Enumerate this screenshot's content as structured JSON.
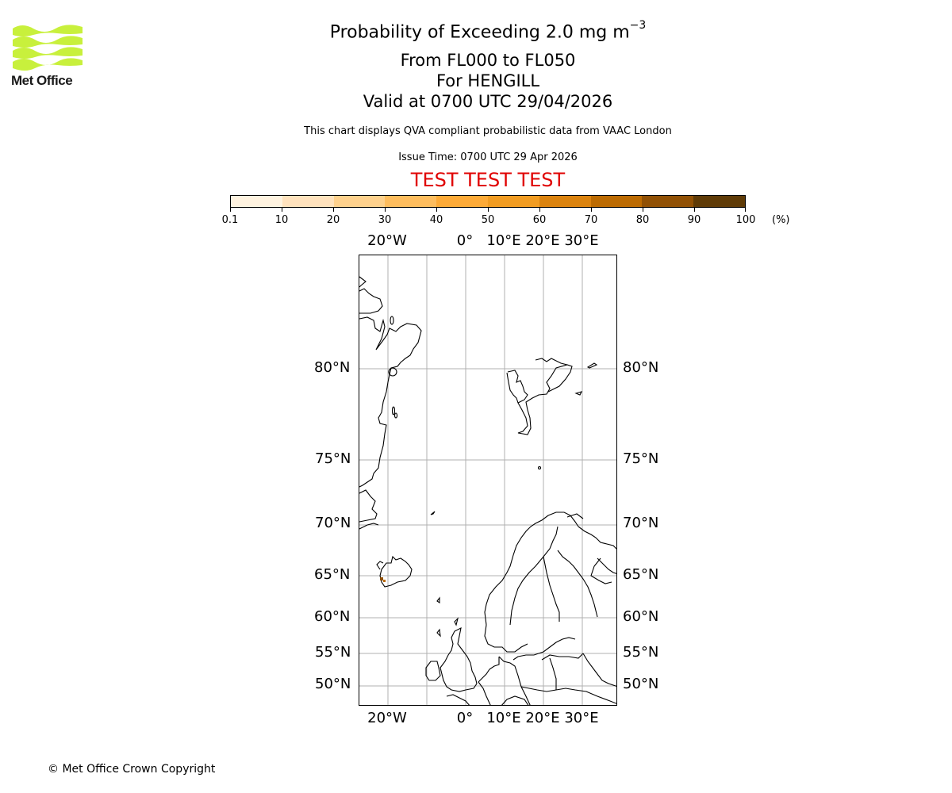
{
  "logo": {
    "name": "Met Office",
    "color": "#c8f03c"
  },
  "title": {
    "main": "Probability of Exceeding 2.0 mg m",
    "main_sup": "−3",
    "levels": "From FL000 to FL050",
    "volcano": "For HENGILL",
    "valid": "Valid at 0700 UTC 29/04/2026"
  },
  "info": {
    "description": "This chart displays QVA compliant probabilistic data from VAAC London",
    "issue_time": "Issue Time: 0700 UTC 29 Apr 2026",
    "test_banner": "TEST TEST TEST",
    "test_color": "#e00000"
  },
  "colorbar": {
    "unit": "(%)",
    "ticks": [
      "0.1",
      "10",
      "20",
      "30",
      "40",
      "50",
      "60",
      "70",
      "80",
      "90",
      "100"
    ],
    "colors": [
      "#fff3e0",
      "#ffe2bd",
      "#fed18d",
      "#febd5e",
      "#fdaa37",
      "#f19c22",
      "#db830f",
      "#bc6b02",
      "#915105",
      "#5f3b07"
    ]
  },
  "map": {
    "top_lon_labels": [
      "20°W",
      "0°",
      "10°E",
      "20°E",
      "30°E"
    ],
    "bottom_lon_labels": [
      "20°W",
      "0°",
      "10°E",
      "20°E",
      "30°E"
    ],
    "left_lat_labels": [
      "80°N",
      "75°N",
      "70°N",
      "65°N",
      "60°N",
      "55°N",
      "50°N"
    ],
    "right_lat_labels": [
      "80°N",
      "75°N",
      "70°N",
      "65°N",
      "60°N",
      "55°N",
      "50°N"
    ],
    "gridline_color": "#b0b0b0",
    "coastline_color": "#000000"
  },
  "chart_data": {
    "type": "heatmap",
    "title": "Probability of Exceeding 2.0 mg m−3",
    "subtitle": [
      "From FL000 to FL050",
      "For HENGILL",
      "Valid at 0700 UTC 29/04/2026"
    ],
    "colorbar": {
      "label": "(%)",
      "bounds": [
        0.1,
        10,
        20,
        30,
        40,
        50,
        60,
        70,
        80,
        90,
        100
      ]
    },
    "x_ticks": [
      "20°W",
      "0°",
      "10°E",
      "20°E",
      "30°E"
    ],
    "y_ticks": [
      "50°N",
      "55°N",
      "60°N",
      "65°N",
      "70°N",
      "75°N",
      "80°N"
    ],
    "region": "North Atlantic / Northern Europe (polar stereographic-like projection)",
    "data_regions": [
      {
        "location": "SW Iceland (Hengill)",
        "approx_probability_band": "70-80%",
        "extent": "very small"
      }
    ],
    "grid": true
  },
  "footer": {
    "copyright": "© Met Office Crown Copyright"
  }
}
